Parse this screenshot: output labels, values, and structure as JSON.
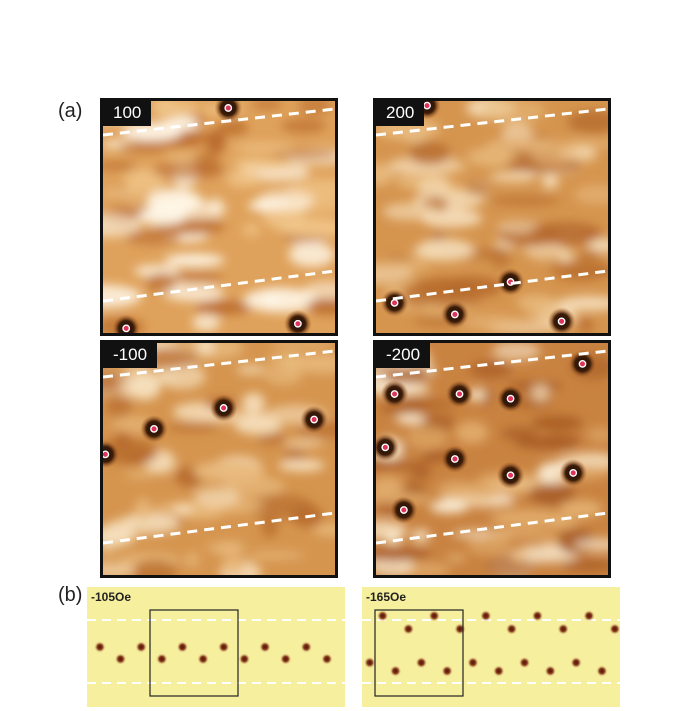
{
  "figure": {
    "part_a_label": "(a)",
    "part_b_label": "(b)"
  },
  "panels": [
    {
      "field": "100",
      "vortices": [
        [
          0.54,
          0.03
        ],
        [
          0.1,
          0.98
        ],
        [
          0.84,
          0.96
        ]
      ],
      "style": "bright"
    },
    {
      "field": "200",
      "vortices": [
        [
          0.22,
          0.02
        ],
        [
          0.08,
          0.87
        ],
        [
          0.34,
          0.92
        ],
        [
          0.58,
          0.78
        ],
        [
          0.8,
          0.95
        ]
      ],
      "style": "medium"
    },
    {
      "field": "-100",
      "vortices": [
        [
          0.22,
          0.37
        ],
        [
          0.52,
          0.28
        ],
        [
          0.91,
          0.33
        ],
        [
          0.01,
          0.48
        ]
      ],
      "style": "medium"
    },
    {
      "field": "-200",
      "vortices": [
        [
          0.08,
          0.22
        ],
        [
          0.36,
          0.22
        ],
        [
          0.58,
          0.24
        ],
        [
          0.89,
          0.09
        ],
        [
          0.04,
          0.45
        ],
        [
          0.34,
          0.5
        ],
        [
          0.58,
          0.57
        ],
        [
          0.85,
          0.56
        ],
        [
          0.12,
          0.72
        ]
      ],
      "style": "dark"
    }
  ],
  "simulations": [
    {
      "field": "-105Oe",
      "dots": [
        [
          0.05,
          0.5
        ],
        [
          0.13,
          0.6
        ],
        [
          0.21,
          0.5
        ],
        [
          0.29,
          0.6
        ],
        [
          0.37,
          0.5
        ],
        [
          0.45,
          0.6
        ],
        [
          0.53,
          0.5
        ],
        [
          0.61,
          0.6
        ],
        [
          0.69,
          0.5
        ],
        [
          0.77,
          0.6
        ],
        [
          0.85,
          0.5
        ],
        [
          0.93,
          0.6
        ]
      ]
    },
    {
      "field": "-165Oe",
      "dots": [
        [
          0.08,
          0.24
        ],
        [
          0.18,
          0.35
        ],
        [
          0.28,
          0.24
        ],
        [
          0.38,
          0.35
        ],
        [
          0.48,
          0.24
        ],
        [
          0.58,
          0.35
        ],
        [
          0.68,
          0.24
        ],
        [
          0.78,
          0.35
        ],
        [
          0.88,
          0.24
        ],
        [
          0.98,
          0.35
        ],
        [
          0.03,
          0.63
        ],
        [
          0.13,
          0.7
        ],
        [
          0.23,
          0.63
        ],
        [
          0.33,
          0.7
        ],
        [
          0.43,
          0.63
        ],
        [
          0.53,
          0.7
        ],
        [
          0.63,
          0.63
        ],
        [
          0.73,
          0.7
        ],
        [
          0.83,
          0.63
        ],
        [
          0.93,
          0.7
        ]
      ]
    }
  ]
}
